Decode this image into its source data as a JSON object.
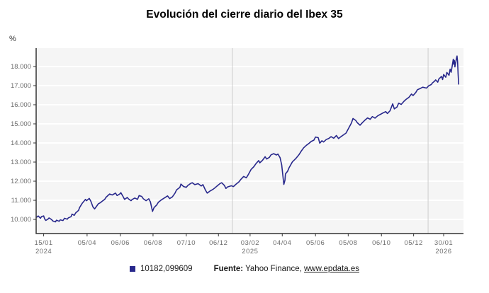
{
  "page": {
    "title": "Evolución del cierre diario del Ibex 35",
    "y_unit": "%"
  },
  "footer": {
    "source_label": "Fuente:",
    "source_text": " Yahoo Finance, ",
    "link_text": "www.epdata.es"
  },
  "chart_data": {
    "type": "line",
    "title": "Evolución del cierre diario del Ibex 35",
    "xlabel": "",
    "ylabel": "%",
    "legend_position": "bottom",
    "grid": true,
    "x_domain": [
      "2024-01-01",
      "2026-03-08"
    ],
    "y_domain": [
      9260,
      18963
    ],
    "y_ticks": [
      {
        "value": 10000,
        "label": "10.000"
      },
      {
        "value": 11000,
        "label": "11.000"
      },
      {
        "value": 12000,
        "label": "12.000"
      },
      {
        "value": 13000,
        "label": "13.000"
      },
      {
        "value": 14000,
        "label": "14.000"
      },
      {
        "value": 15000,
        "label": "15.000"
      },
      {
        "value": 16000,
        "label": "16.000"
      },
      {
        "value": 17000,
        "label": "17.000"
      },
      {
        "value": 18000,
        "label": "18.000"
      }
    ],
    "x_ticks": [
      {
        "date": "2024-01-15",
        "label": "15/01",
        "year": "2024"
      },
      {
        "date": "2024-04-05",
        "label": "05/04",
        "year": ""
      },
      {
        "date": "2024-06-06",
        "label": "06/06",
        "year": ""
      },
      {
        "date": "2024-08-06",
        "label": "06/08",
        "year": ""
      },
      {
        "date": "2024-10-07",
        "label": "07/10",
        "year": ""
      },
      {
        "date": "2024-12-06",
        "label": "06/12",
        "year": ""
      },
      {
        "date": "2025-02-03",
        "label": "03/02",
        "year": "2025"
      },
      {
        "date": "2025-04-04",
        "label": "04/04",
        "year": ""
      },
      {
        "date": "2025-06-05",
        "label": "05/06",
        "year": ""
      },
      {
        "date": "2025-08-05",
        "label": "05/08",
        "year": ""
      },
      {
        "date": "2025-10-06",
        "label": "06/10",
        "year": ""
      },
      {
        "date": "2025-12-05",
        "label": "05/12",
        "year": ""
      },
      {
        "date": "2026-01-30",
        "label": "30/01",
        "year": "2026"
      }
    ],
    "year_lines": [
      "2025-01-01",
      "2026-01-01"
    ],
    "colors": {
      "line": "#28288C",
      "plot_bg": "#f5f5f5",
      "grid": "#ffffff",
      "year_line": "#cccccc",
      "axis": "#333333",
      "tick_text": "#6e6e6e"
    },
    "series": [
      {
        "name": "10182,099609",
        "points": [
          [
            "2024-01-02",
            10120
          ],
          [
            "2024-01-05",
            10180
          ],
          [
            "2024-01-09",
            10060
          ],
          [
            "2024-01-11",
            10150
          ],
          [
            "2024-01-15",
            10182
          ],
          [
            "2024-01-17",
            10020
          ],
          [
            "2024-01-19",
            9950
          ],
          [
            "2024-01-23",
            10010
          ],
          [
            "2024-01-25",
            10080
          ],
          [
            "2024-01-30",
            9990
          ],
          [
            "2024-02-01",
            9920
          ],
          [
            "2024-02-06",
            9870
          ],
          [
            "2024-02-08",
            9960
          ],
          [
            "2024-02-13",
            9900
          ],
          [
            "2024-02-15",
            9980
          ],
          [
            "2024-02-20",
            9940
          ],
          [
            "2024-02-23",
            10060
          ],
          [
            "2024-02-28",
            10010
          ],
          [
            "2024-03-01",
            10080
          ],
          [
            "2024-03-06",
            10140
          ],
          [
            "2024-03-08",
            10280
          ],
          [
            "2024-03-12",
            10210
          ],
          [
            "2024-03-15",
            10350
          ],
          [
            "2024-03-20",
            10470
          ],
          [
            "2024-03-22",
            10620
          ],
          [
            "2024-03-27",
            10850
          ],
          [
            "2024-04-02",
            11050
          ],
          [
            "2024-04-04",
            10980
          ],
          [
            "2024-04-09",
            11100
          ],
          [
            "2024-04-12",
            10950
          ],
          [
            "2024-04-16",
            10650
          ],
          [
            "2024-04-19",
            10550
          ],
          [
            "2024-04-23",
            10700
          ],
          [
            "2024-04-26",
            10820
          ],
          [
            "2024-04-30",
            10880
          ],
          [
            "2024-05-03",
            10950
          ],
          [
            "2024-05-08",
            11050
          ],
          [
            "2024-05-10",
            11150
          ],
          [
            "2024-05-15",
            11280
          ],
          [
            "2024-05-17",
            11330
          ],
          [
            "2024-05-22",
            11280
          ],
          [
            "2024-05-28",
            11380
          ],
          [
            "2024-05-31",
            11250
          ],
          [
            "2024-06-05",
            11330
          ],
          [
            "2024-06-07",
            11400
          ],
          [
            "2024-06-11",
            11200
          ],
          [
            "2024-06-14",
            11050
          ],
          [
            "2024-06-19",
            11150
          ],
          [
            "2024-06-21",
            11080
          ],
          [
            "2024-06-26",
            10980
          ],
          [
            "2024-06-28",
            11040
          ],
          [
            "2024-07-03",
            11120
          ],
          [
            "2024-07-08",
            11050
          ],
          [
            "2024-07-11",
            11250
          ],
          [
            "2024-07-16",
            11200
          ],
          [
            "2024-07-19",
            11080
          ],
          [
            "2024-07-24",
            10980
          ],
          [
            "2024-07-29",
            11080
          ],
          [
            "2024-08-01",
            10920
          ],
          [
            "2024-08-05",
            10420
          ],
          [
            "2024-08-08",
            10620
          ],
          [
            "2024-08-13",
            10760
          ],
          [
            "2024-08-16",
            10900
          ],
          [
            "2024-08-21",
            11010
          ],
          [
            "2024-08-27",
            11120
          ],
          [
            "2024-09-02",
            11230
          ],
          [
            "2024-09-06",
            11090
          ],
          [
            "2024-09-11",
            11180
          ],
          [
            "2024-09-16",
            11380
          ],
          [
            "2024-09-19",
            11550
          ],
          [
            "2024-09-25",
            11680
          ],
          [
            "2024-09-27",
            11850
          ],
          [
            "2024-10-02",
            11720
          ],
          [
            "2024-10-07",
            11680
          ],
          [
            "2024-10-10",
            11780
          ],
          [
            "2024-10-15",
            11880
          ],
          [
            "2024-10-18",
            11920
          ],
          [
            "2024-10-23",
            11820
          ],
          [
            "2024-10-29",
            11870
          ],
          [
            "2024-11-04",
            11750
          ],
          [
            "2024-11-07",
            11820
          ],
          [
            "2024-11-12",
            11520
          ],
          [
            "2024-11-15",
            11380
          ],
          [
            "2024-11-20",
            11480
          ],
          [
            "2024-11-26",
            11580
          ],
          [
            "2024-11-29",
            11640
          ],
          [
            "2024-12-04",
            11760
          ],
          [
            "2024-12-09",
            11880
          ],
          [
            "2024-12-12",
            11920
          ],
          [
            "2024-12-17",
            11780
          ],
          [
            "2024-12-20",
            11620
          ],
          [
            "2024-12-23",
            11700
          ],
          [
            "2024-12-30",
            11760
          ],
          [
            "2025-01-03",
            11720
          ],
          [
            "2025-01-08",
            11850
          ],
          [
            "2025-01-13",
            11960
          ],
          [
            "2025-01-17",
            12100
          ],
          [
            "2025-01-22",
            12250
          ],
          [
            "2025-01-27",
            12180
          ],
          [
            "2025-01-31",
            12360
          ],
          [
            "2025-02-05",
            12620
          ],
          [
            "2025-02-10",
            12760
          ],
          [
            "2025-02-14",
            12920
          ],
          [
            "2025-02-19",
            13080
          ],
          [
            "2025-02-21",
            12960
          ],
          [
            "2025-02-26",
            13090
          ],
          [
            "2025-03-03",
            13280
          ],
          [
            "2025-03-06",
            13160
          ],
          [
            "2025-03-11",
            13250
          ],
          [
            "2025-03-14",
            13380
          ],
          [
            "2025-03-19",
            13440
          ],
          [
            "2025-03-24",
            13370
          ],
          [
            "2025-03-27",
            13420
          ],
          [
            "2025-03-31",
            13230
          ],
          [
            "2025-04-03",
            12850
          ],
          [
            "2025-04-07",
            11830
          ],
          [
            "2025-04-09",
            12050
          ],
          [
            "2025-04-10",
            12380
          ],
          [
            "2025-04-14",
            12520
          ],
          [
            "2025-04-17",
            12720
          ],
          [
            "2025-04-23",
            13010
          ],
          [
            "2025-04-29",
            13180
          ],
          [
            "2025-05-05",
            13380
          ],
          [
            "2025-05-09",
            13560
          ],
          [
            "2025-05-14",
            13750
          ],
          [
            "2025-05-19",
            13880
          ],
          [
            "2025-05-23",
            13960
          ],
          [
            "2025-05-28",
            14080
          ],
          [
            "2025-06-02",
            14150
          ],
          [
            "2025-06-05",
            14310
          ],
          [
            "2025-06-10",
            14280
          ],
          [
            "2025-06-13",
            13990
          ],
          [
            "2025-06-17",
            14120
          ],
          [
            "2025-06-20",
            14050
          ],
          [
            "2025-06-25",
            14180
          ],
          [
            "2025-06-30",
            14240
          ],
          [
            "2025-07-04",
            14330
          ],
          [
            "2025-07-09",
            14250
          ],
          [
            "2025-07-14",
            14390
          ],
          [
            "2025-07-18",
            14230
          ],
          [
            "2025-07-23",
            14340
          ],
          [
            "2025-07-28",
            14440
          ],
          [
            "2025-08-01",
            14520
          ],
          [
            "2025-08-06",
            14780
          ],
          [
            "2025-08-11",
            15050
          ],
          [
            "2025-08-14",
            15280
          ],
          [
            "2025-08-19",
            15180
          ],
          [
            "2025-08-22",
            15060
          ],
          [
            "2025-08-27",
            14930
          ],
          [
            "2025-09-01",
            15080
          ],
          [
            "2025-09-05",
            15190
          ],
          [
            "2025-09-10",
            15310
          ],
          [
            "2025-09-15",
            15240
          ],
          [
            "2025-09-19",
            15380
          ],
          [
            "2025-09-24",
            15300
          ],
          [
            "2025-09-29",
            15420
          ],
          [
            "2025-10-03",
            15480
          ],
          [
            "2025-10-08",
            15560
          ],
          [
            "2025-10-14",
            15640
          ],
          [
            "2025-10-17",
            15540
          ],
          [
            "2025-10-22",
            15680
          ],
          [
            "2025-10-27",
            16050
          ],
          [
            "2025-10-30",
            15780
          ],
          [
            "2025-11-04",
            15880
          ],
          [
            "2025-11-07",
            16080
          ],
          [
            "2025-11-12",
            16020
          ],
          [
            "2025-11-17",
            16180
          ],
          [
            "2025-11-21",
            16280
          ],
          [
            "2025-11-26",
            16380
          ],
          [
            "2025-12-01",
            16560
          ],
          [
            "2025-12-04",
            16480
          ],
          [
            "2025-12-09",
            16640
          ],
          [
            "2025-12-12",
            16780
          ],
          [
            "2025-12-17",
            16850
          ],
          [
            "2025-12-22",
            16920
          ],
          [
            "2025-12-29",
            16870
          ],
          [
            "2026-01-02",
            16990
          ],
          [
            "2026-01-07",
            17060
          ],
          [
            "2026-01-09",
            17140
          ],
          [
            "2026-01-13",
            17230
          ],
          [
            "2026-01-15",
            17300
          ],
          [
            "2026-01-19",
            17180
          ],
          [
            "2026-01-21",
            17350
          ],
          [
            "2026-01-26",
            17480
          ],
          [
            "2026-01-28",
            17320
          ],
          [
            "2026-01-30",
            17580
          ],
          [
            "2026-02-03",
            17440
          ],
          [
            "2026-02-05",
            17690
          ],
          [
            "2026-02-09",
            17540
          ],
          [
            "2026-02-11",
            17860
          ],
          [
            "2026-02-13",
            17700
          ],
          [
            "2026-02-16",
            18220
          ],
          [
            "2026-02-17",
            18380
          ],
          [
            "2026-02-18",
            18120
          ],
          [
            "2026-02-19",
            18320
          ],
          [
            "2026-02-20",
            17980
          ],
          [
            "2026-02-23",
            18460
          ],
          [
            "2026-02-24",
            18550
          ],
          [
            "2026-02-25",
            18240
          ],
          [
            "2026-02-26",
            17620
          ],
          [
            "2026-02-27",
            17080
          ]
        ]
      }
    ]
  }
}
